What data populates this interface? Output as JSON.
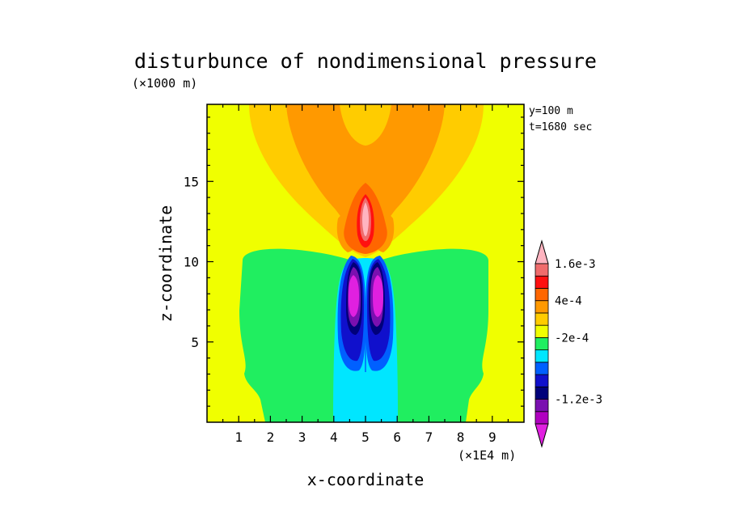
{
  "chart_data": {
    "type": "contour",
    "title": "disturbunce of nondimensional pressure",
    "xlabel": "x-coordinate",
    "ylabel": "z-coordinate",
    "x_unit": "(×1E4 m)",
    "y_unit": "(×1000 m)",
    "xlim": [
      0,
      10
    ],
    "ylim": [
      0,
      19.8
    ],
    "x_ticks": [
      "1",
      "2",
      "3",
      "4",
      "5",
      "6",
      "7",
      "8",
      "9"
    ],
    "x_tick_values": [
      1,
      2,
      3,
      4,
      5,
      6,
      7,
      8,
      9
    ],
    "y_ticks": [
      "5",
      "10",
      "15"
    ],
    "y_tick_values": [
      5,
      10,
      15
    ],
    "annotations": [
      "y=100 m",
      "t=1680 sec"
    ],
    "colorbar": {
      "levels": [
        -0.0016,
        -0.0014,
        -0.0012,
        -0.001,
        -0.0008,
        -0.0006,
        -0.0004,
        -0.0002,
        0,
        0.0002,
        0.0004,
        0.0008,
        0.0012,
        0.0016,
        0.002
      ],
      "colors": [
        "#e020e0",
        "#b000c0",
        "#7a10b0",
        "#00007a",
        "#1010cc",
        "#0060ff",
        "#00e6ff",
        "#20ee60",
        "#f0ff00",
        "#ffcc00",
        "#ff9900",
        "#ff6600",
        "#ff1010",
        "#f06c6c",
        "#ffb4c0"
      ],
      "labels": [
        "1.6e-3",
        "4e-4",
        "-2e-4",
        "-1.2e-3"
      ],
      "label_values": [
        0.0016,
        0.0004,
        -0.0002,
        -0.0012
      ]
    }
  }
}
